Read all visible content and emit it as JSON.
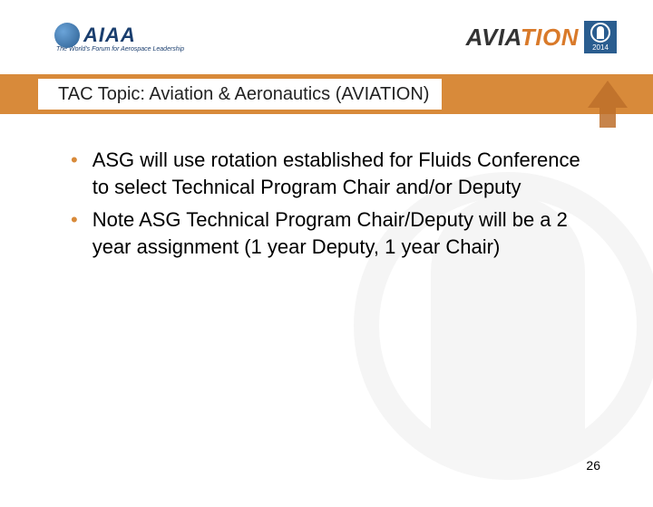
{
  "header": {
    "left_logo_text": "AIAA",
    "left_tagline": "The World's Forum for Aerospace Leadership",
    "right_logo_part1": "AVIA",
    "right_logo_part2": "TION",
    "year": "2014"
  },
  "title": "TAC Topic: Aviation & Aeronautics (AVIATION)",
  "bullets": [
    "ASG will use rotation established for Fluids Conference to select Technical Program Chair and/or Deputy",
    "Note ASG Technical Program Chair/Deputy will be a 2 year assignment (1 year Deputy, 1 year Chair)"
  ],
  "page_number": "26",
  "colors": {
    "title_bar": "#d88a3a",
    "arrow": "#bd6f2a",
    "bullet_dot": "#d88a3a",
    "logo_blue": "#1a3e6e",
    "badge_blue": "#2a5d8f",
    "text": "#000000",
    "background": "#ffffff"
  },
  "fonts": {
    "title_size": 20,
    "body_size": 22,
    "logo_size": 22
  }
}
